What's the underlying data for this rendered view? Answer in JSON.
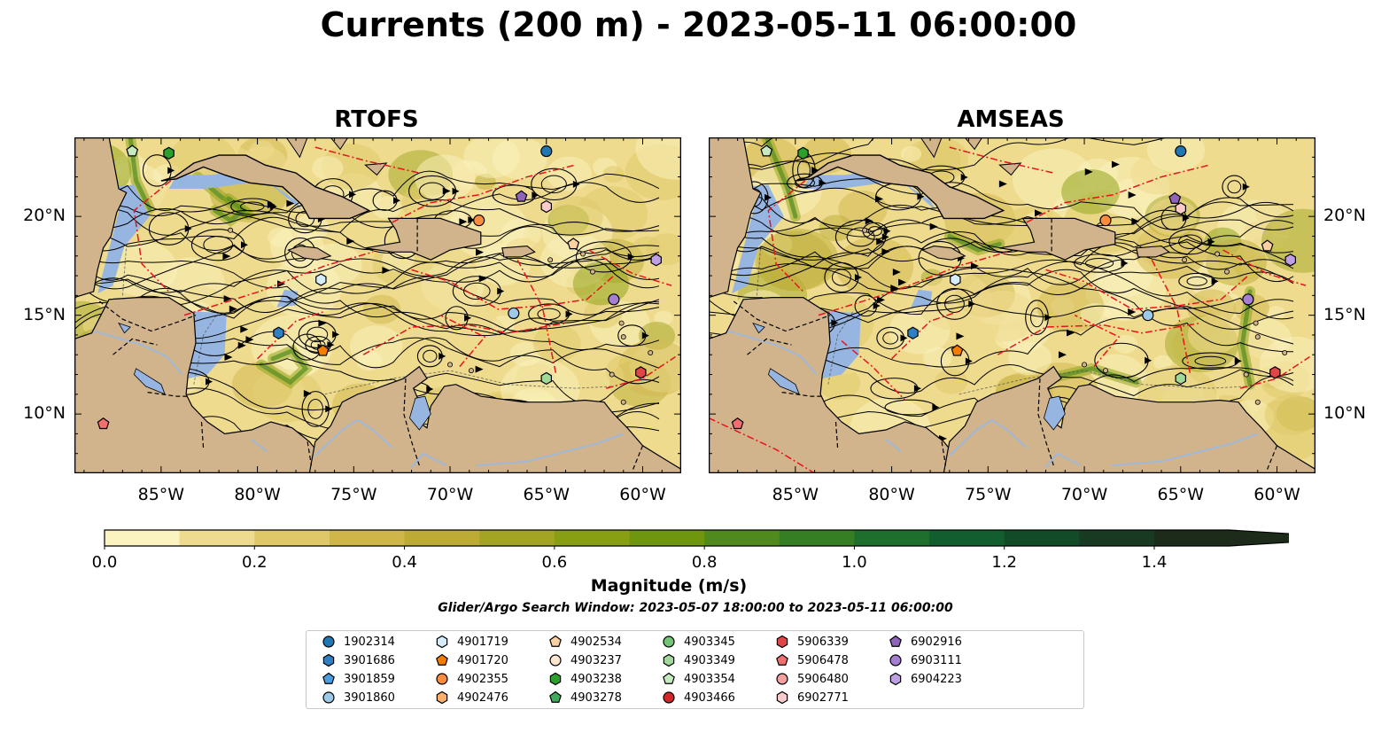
{
  "title": "Currents (200 m) - 2023-05-11 06:00:00",
  "panels": [
    {
      "title": "RTOFS"
    },
    {
      "title": "AMSEAS"
    }
  ],
  "lat_ticks": [
    "10°N",
    "15°N",
    "20°N"
  ],
  "lon_ticks": [
    "85°W",
    "80°W",
    "75°W",
    "70°W",
    "65°W",
    "60°W"
  ],
  "colorbar": {
    "label": "Magnitude (m/s)",
    "ticks": [
      "0.0",
      "0.2",
      "0.4",
      "0.6",
      "0.8",
      "1.0",
      "1.2",
      "1.4"
    ],
    "levels": [
      0,
      0.1,
      0.2,
      0.3,
      0.4,
      0.5,
      0.6,
      0.7,
      0.8,
      0.9,
      1.0,
      1.1,
      1.2,
      1.3,
      1.4,
      1.5
    ],
    "colors": [
      "#fbf3c0",
      "#eedb8e",
      "#dfc868",
      "#cfb64a",
      "#bcab35",
      "#a3a423",
      "#899f13",
      "#6e960f",
      "#508a1c",
      "#367e23",
      "#1e6e2e",
      "#135e2e",
      "#124b28",
      "#193a22",
      "#1c2b1a"
    ],
    "extend": "max"
  },
  "search_window": "Glider/Argo Search Window: 2023-05-07 18:00:00 to 2023-05-11 06:00:00",
  "map_colors": {
    "land": "#d2b48c",
    "ocean_shallow": "#96b5e0",
    "river": "#a0b8d8",
    "eez_line": "#e8131e"
  },
  "legend": [
    {
      "id": "1902314",
      "marker": "circle",
      "color": "#1f77b4"
    },
    {
      "id": "3901686",
      "marker": "hexagon",
      "color": "#2f7fc1"
    },
    {
      "id": "3901859",
      "marker": "pentagon",
      "color": "#4a9ee0"
    },
    {
      "id": "3901860",
      "marker": "circle",
      "color": "#9ecae9"
    },
    {
      "id": "4901719",
      "marker": "hexagon",
      "color": "#d6ecfa"
    },
    {
      "id": "4901720",
      "marker": "pentagon",
      "color": "#f57c00"
    },
    {
      "id": "4902355",
      "marker": "circle",
      "color": "#fd8d3c"
    },
    {
      "id": "4902476",
      "marker": "hexagon",
      "color": "#fdae6b"
    },
    {
      "id": "4902534",
      "marker": "pentagon",
      "color": "#fdd0a2"
    },
    {
      "id": "4903237",
      "marker": "circle",
      "color": "#fee6ce"
    },
    {
      "id": "4903238",
      "marker": "hexagon",
      "color": "#2ca02c"
    },
    {
      "id": "4903278",
      "marker": "pentagon",
      "color": "#41ab5d"
    },
    {
      "id": "4903345",
      "marker": "circle",
      "color": "#74c476"
    },
    {
      "id": "4903349",
      "marker": "hexagon",
      "color": "#a1d99b"
    },
    {
      "id": "4903354",
      "marker": "pentagon",
      "color": "#c7e9c0"
    },
    {
      "id": "4903466",
      "marker": "circle",
      "color": "#d62728"
    },
    {
      "id": "5906339",
      "marker": "hexagon",
      "color": "#e04646"
    },
    {
      "id": "5906478",
      "marker": "pentagon",
      "color": "#f07070"
    },
    {
      "id": "5906480",
      "marker": "circle",
      "color": "#f4a0a0"
    },
    {
      "id": "6902771",
      "marker": "hexagon",
      "color": "#fbcaca"
    },
    {
      "id": "6902916",
      "marker": "pentagon",
      "color": "#8e63b8"
    },
    {
      "id": "6903111",
      "marker": "circle",
      "color": "#a67fd2"
    },
    {
      "id": "6904223",
      "marker": "hexagon",
      "color": "#bfa0e3"
    }
  ],
  "float_positions": {
    "RTOFS": [
      {
        "id": "1902314",
        "lon": -65.0,
        "lat": 23.3
      },
      {
        "id": "4903238",
        "lon": -84.6,
        "lat": 23.2
      },
      {
        "id": "4903354",
        "lon": -86.5,
        "lat": 23.3
      },
      {
        "id": "6902916",
        "lon": -66.3,
        "lat": 21.0
      },
      {
        "id": "6902771",
        "lon": -65.0,
        "lat": 20.5
      },
      {
        "id": "4902355",
        "lon": -68.5,
        "lat": 19.8
      },
      {
        "id": "4902534",
        "lon": -63.6,
        "lat": 18.6
      },
      {
        "id": "6904223",
        "lon": -59.3,
        "lat": 17.8
      },
      {
        "id": "4901719",
        "lon": -76.7,
        "lat": 16.8
      },
      {
        "id": "6903111",
        "lon": -61.5,
        "lat": 15.8
      },
      {
        "id": "3901860",
        "lon": -66.7,
        "lat": 15.1
      },
      {
        "id": "3901686",
        "lon": -78.9,
        "lat": 14.1
      },
      {
        "id": "4901720",
        "lon": -76.6,
        "lat": 13.2
      },
      {
        "id": "5906339",
        "lon": -60.1,
        "lat": 12.1
      },
      {
        "id": "4903349",
        "lon": -65.0,
        "lat": 11.8
      },
      {
        "id": "5906478",
        "lon": -88.0,
        "lat": 9.5
      }
    ],
    "AMSEAS": [
      {
        "id": "1902314",
        "lon": -65.0,
        "lat": 23.3
      },
      {
        "id": "4903238",
        "lon": -84.6,
        "lat": 23.2
      },
      {
        "id": "4903354",
        "lon": -86.5,
        "lat": 23.3
      },
      {
        "id": "6902916",
        "lon": -65.3,
        "lat": 20.9
      },
      {
        "id": "6902771",
        "lon": -65.0,
        "lat": 20.4
      },
      {
        "id": "4902355",
        "lon": -68.9,
        "lat": 19.8
      },
      {
        "id": "4902534",
        "lon": -60.5,
        "lat": 18.5
      },
      {
        "id": "6904223",
        "lon": -59.3,
        "lat": 17.8
      },
      {
        "id": "4901719",
        "lon": -76.7,
        "lat": 16.8
      },
      {
        "id": "6903111",
        "lon": -61.5,
        "lat": 15.8
      },
      {
        "id": "3901860",
        "lon": -66.7,
        "lat": 15.0
      },
      {
        "id": "3901686",
        "lon": -78.9,
        "lat": 14.1
      },
      {
        "id": "4901720",
        "lon": -76.6,
        "lat": 13.2
      },
      {
        "id": "5906339",
        "lon": -60.1,
        "lat": 12.1
      },
      {
        "id": "4903349",
        "lon": -65.0,
        "lat": 11.8
      },
      {
        "id": "5906478",
        "lon": -88.0,
        "lat": 9.5
      }
    ]
  }
}
